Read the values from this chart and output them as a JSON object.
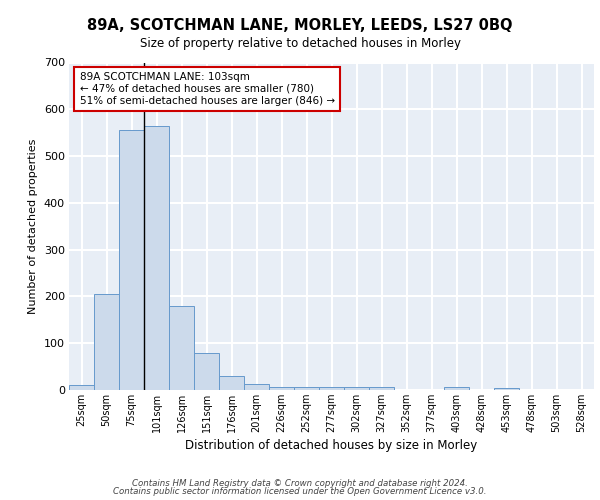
{
  "title": "89A, SCOTCHMAN LANE, MORLEY, LEEDS, LS27 0BQ",
  "subtitle": "Size of property relative to detached houses in Morley",
  "xlabel": "Distribution of detached houses by size in Morley",
  "ylabel": "Number of detached properties",
  "bar_color": "#ccdaeb",
  "bar_edge_color": "#6699cc",
  "background_color": "#e8eef6",
  "grid_color": "#ffffff",
  "categories": [
    "25sqm",
    "50sqm",
    "75sqm",
    "101sqm",
    "126sqm",
    "151sqm",
    "176sqm",
    "201sqm",
    "226sqm",
    "252sqm",
    "277sqm",
    "302sqm",
    "327sqm",
    "352sqm",
    "377sqm",
    "403sqm",
    "428sqm",
    "453sqm",
    "478sqm",
    "503sqm",
    "528sqm"
  ],
  "values": [
    10,
    205,
    555,
    565,
    180,
    80,
    30,
    12,
    7,
    7,
    7,
    6,
    6,
    0,
    0,
    6,
    0,
    5,
    0,
    0,
    0
  ],
  "ylim": [
    0,
    700
  ],
  "yticks": [
    0,
    100,
    200,
    300,
    400,
    500,
    600,
    700
  ],
  "property_line_x": 2.5,
  "annotation_text": "89A SCOTCHMAN LANE: 103sqm\n← 47% of detached houses are smaller (780)\n51% of semi-detached houses are larger (846) →",
  "annotation_box_color": "#ffffff",
  "annotation_box_edge_color": "#cc0000",
  "footer_line1": "Contains HM Land Registry data © Crown copyright and database right 2024.",
  "footer_line2": "Contains public sector information licensed under the Open Government Licence v3.0.",
  "property_line_color": "#000000"
}
